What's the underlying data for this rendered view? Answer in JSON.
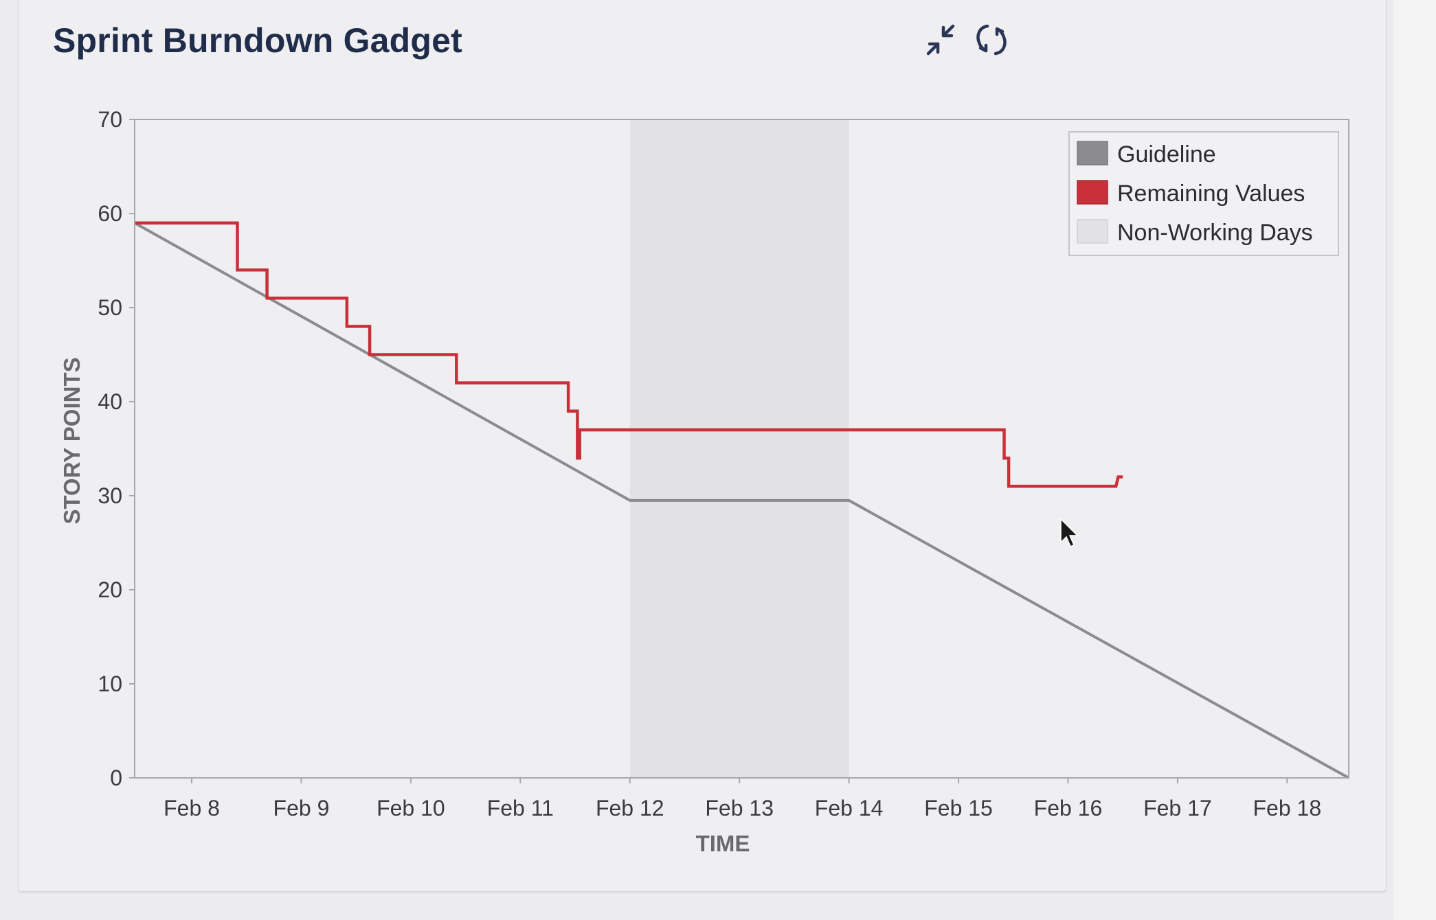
{
  "gadget": {
    "title": "Sprint Burndown Gadget",
    "collapse_icon": "collapse-arrows-icon",
    "refresh_icon": "refresh-icon"
  },
  "colors": {
    "guideline": "#8c8c8e",
    "remaining": "#c9303a",
    "non_working": "#e2e2e4",
    "plot_bg": "#efeff1"
  },
  "chart_data": {
    "type": "line",
    "xlabel": "TIME",
    "ylabel": "STORY POINTS",
    "ylim": [
      0,
      70
    ],
    "y_ticks": [
      0,
      10,
      20,
      30,
      40,
      50,
      60,
      70
    ],
    "x_ticks": [
      "Feb 8",
      "Feb 9",
      "Feb 10",
      "Feb 11",
      "Feb 12",
      "Feb 13",
      "Feb 14",
      "Feb 15",
      "Feb 16",
      "Feb 17",
      "Feb 18"
    ],
    "xlim": [
      "Feb 7 11:30",
      "Feb 18 13:30"
    ],
    "grid": false,
    "legend_position": "top-right",
    "legend": [
      "Guideline",
      "Remaining Values",
      "Non-Working Days"
    ],
    "non_working_days": [
      [
        "Feb 12 00:00",
        "Feb 14 00:00"
      ]
    ],
    "series": [
      {
        "name": "Guideline",
        "x": [
          "Feb 7 11:30",
          "Feb 12 00:00",
          "Feb 14 00:00",
          "Feb 18 13:30"
        ],
        "y": [
          59,
          29.5,
          29.5,
          0
        ]
      },
      {
        "name": "Remaining Values",
        "step": true,
        "x": [
          "Feb 7 11:30",
          "Feb 8 10:00",
          "Feb 8 10:00",
          "Feb 8 16:30",
          "Feb 8 16:30",
          "Feb 9 10:00",
          "Feb 9 10:00",
          "Feb 9 15:00",
          "Feb 9 15:00",
          "Feb 10 10:00",
          "Feb 10 10:00",
          "Feb 11 10:30",
          "Feb 11 10:30",
          "Feb 11 12:30",
          "Feb 11 12:30",
          "Feb 11 13:00",
          "Feb 11 13:00",
          "Feb 15 10:00",
          "Feb 15 10:00",
          "Feb 15 11:00",
          "Feb 15 11:00",
          "Feb 16 10:30",
          "Feb 16 11:00",
          "Feb 16 12:00"
        ],
        "y": [
          59,
          59,
          54,
          54,
          51,
          51,
          48,
          48,
          45,
          45,
          42,
          42,
          39,
          39,
          34,
          34,
          37,
          37,
          34,
          34,
          31,
          31,
          32,
          32
        ]
      }
    ]
  }
}
